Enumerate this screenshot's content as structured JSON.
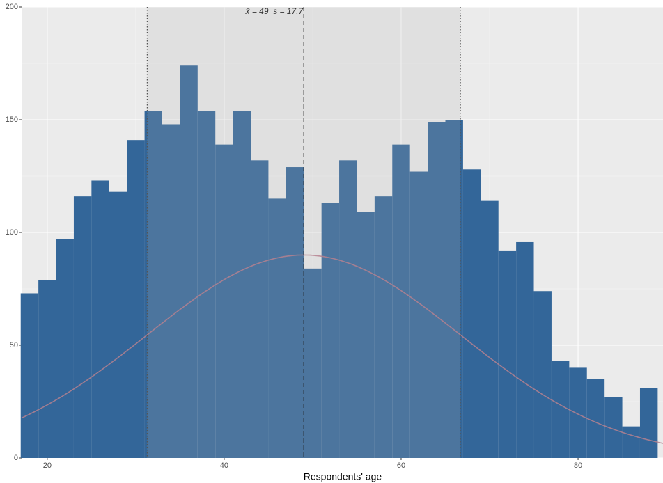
{
  "chart_data": {
    "type": "histogram",
    "annotation": "x̄ = 49  s = 17.7",
    "x_label": "Respondents' age",
    "bins": [
      17,
      19,
      21,
      23,
      25,
      27,
      29,
      31,
      33,
      35,
      37,
      39,
      41,
      43,
      45,
      47,
      49,
      51,
      53,
      55,
      57,
      59,
      61,
      63,
      65,
      67,
      69,
      71,
      73,
      75,
      77,
      79,
      81,
      83,
      85,
      87,
      89
    ],
    "values": [
      73,
      79,
      97,
      116,
      123,
      118,
      141,
      154,
      148,
      174,
      154,
      139,
      154,
      132,
      115,
      129,
      84,
      113,
      132,
      109,
      116,
      139,
      127,
      149,
      150,
      128,
      114,
      92,
      96,
      74,
      43,
      40,
      35,
      27,
      14,
      31
    ],
    "color": "#336699",
    "mean": 49,
    "sd": 17.7,
    "shade_color": "#b4b4b4",
    "shade_opacity": 0.2,
    "normal_curve": {
      "peak": 90,
      "color": "#b5818f"
    },
    "xlim": [
      17.1,
      89.6
    ],
    "ylim": [
      0,
      200
    ],
    "xticks": [
      20,
      40,
      60,
      80
    ],
    "yticks": [
      0,
      50,
      100,
      150,
      200
    ],
    "xminor": [
      30,
      50,
      70
    ],
    "yminor": [
      25,
      75,
      125,
      175
    ],
    "grid": true
  }
}
